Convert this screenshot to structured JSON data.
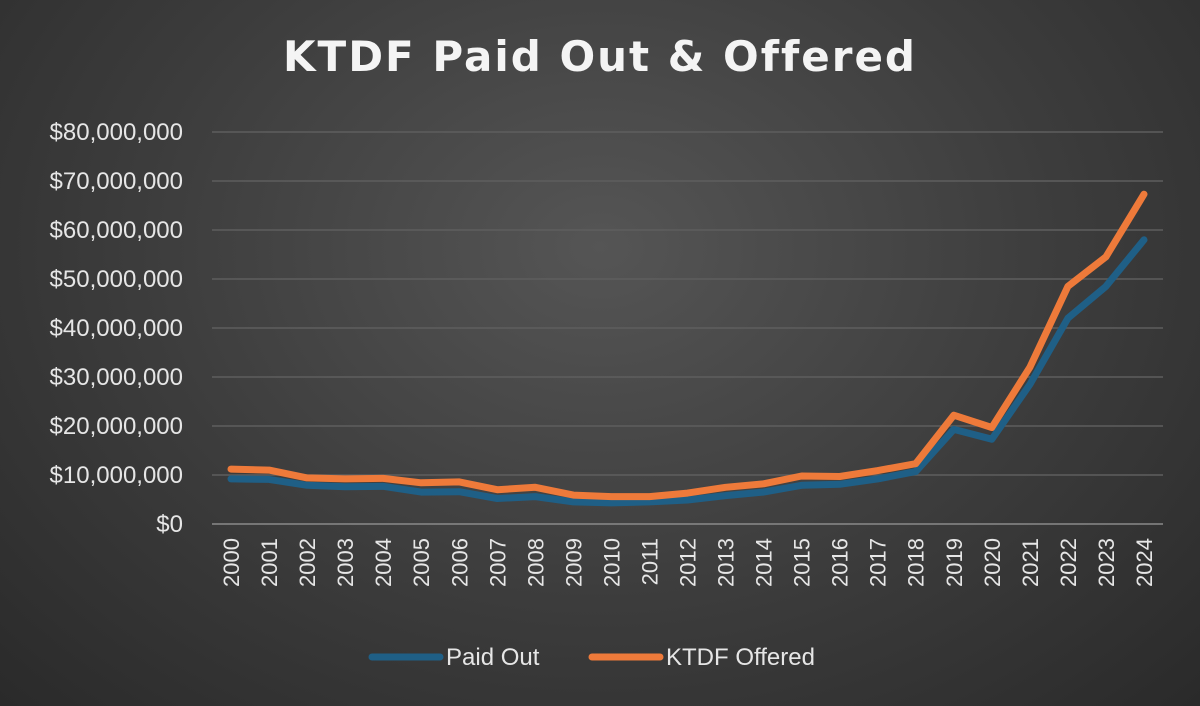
{
  "chart_data": {
    "type": "line",
    "title": "KTDF Paid Out & Offered",
    "xlabel": "",
    "ylabel": "",
    "ylim": [
      0,
      80000000
    ],
    "y_ticks": [
      "$0",
      "$10,000,000",
      "$20,000,000",
      "$30,000,000",
      "$40,000,000",
      "$50,000,000",
      "$60,000,000",
      "$70,000,000",
      "$80,000,000"
    ],
    "x": [
      "2000",
      "2001",
      "2002",
      "2003",
      "2004",
      "2005",
      "2006",
      "2007",
      "2008",
      "2009",
      "2010",
      "2011",
      "2012",
      "2013",
      "2014",
      "2015",
      "2016",
      "2017",
      "2018",
      "2019",
      "2020",
      "2021",
      "2022",
      "2023",
      "2024"
    ],
    "grid": true,
    "legend_position": "bottom",
    "series": [
      {
        "name": "Paid Out",
        "color": "#1f5f86",
        "values": [
          9200000,
          9100000,
          7900000,
          7600000,
          7700000,
          6500000,
          6600000,
          5200000,
          5600000,
          4500000,
          4300000,
          4500000,
          4900000,
          5800000,
          6500000,
          7900000,
          8100000,
          9200000,
          10700000,
          19300000,
          17300000,
          28500000,
          42000000,
          48500000,
          58000000
        ]
      },
      {
        "name": "KTDF Offered",
        "color": "#ee7a3a",
        "values": [
          11200000,
          11000000,
          9400000,
          9200000,
          9300000,
          8400000,
          8600000,
          7000000,
          7500000,
          5900000,
          5600000,
          5600000,
          6300000,
          7500000,
          8200000,
          9800000,
          9700000,
          10900000,
          12300000,
          22200000,
          19700000,
          32000000,
          48500000,
          54500000,
          67300000
        ]
      }
    ]
  }
}
